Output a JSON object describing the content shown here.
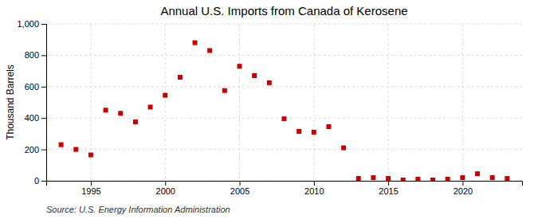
{
  "chart_data": {
    "type": "scatter",
    "title": "Annual U.S. Imports from Canada of Kerosene",
    "ylabel": "Thousand Barrels",
    "annotation": "Source: U.S. Energy Information Administration",
    "x": [
      1993,
      1994,
      1995,
      1996,
      1997,
      1998,
      1999,
      2000,
      2001,
      2002,
      2003,
      2004,
      2005,
      2006,
      2007,
      2008,
      2009,
      2010,
      2011,
      2012,
      2013,
      2014,
      2015,
      2016,
      2017,
      2018,
      2019,
      2020,
      2021,
      2022,
      2023
    ],
    "values": [
      230,
      200,
      165,
      450,
      430,
      375,
      470,
      545,
      660,
      880,
      830,
      575,
      730,
      670,
      625,
      395,
      315,
      310,
      345,
      210,
      15,
      20,
      15,
      5,
      10,
      5,
      10,
      20,
      45,
      20,
      15
    ],
    "color": "#cc0000",
    "marker": "square",
    "xlim": [
      1992,
      2024
    ],
    "xticks": [
      1995,
      2000,
      2005,
      2010,
      2015,
      2020
    ],
    "ylim": [
      0,
      1000
    ],
    "yticks": [
      0,
      200,
      400,
      600,
      800,
      {
        "value": 1000,
        "label": "1,000"
      }
    ],
    "grid": true
  }
}
